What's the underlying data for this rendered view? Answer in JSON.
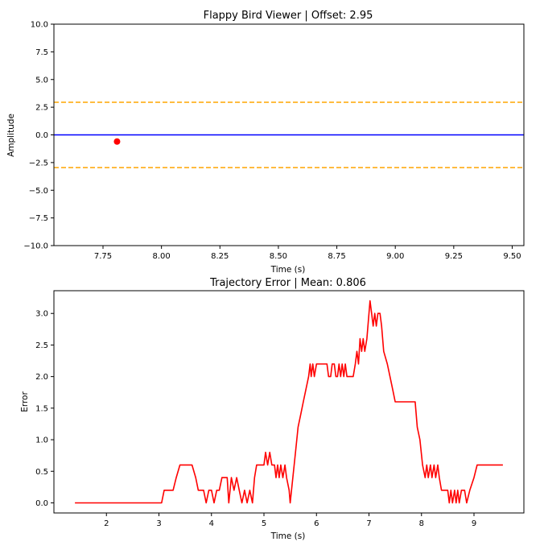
{
  "chart_data": [
    {
      "type": "scatter",
      "title": "Flappy Bird Viewer | Offset: 2.95",
      "xlabel": "Time (s)",
      "ylabel": "Amplitude",
      "xlim": [
        7.54,
        9.55
      ],
      "ylim": [
        -10,
        10
      ],
      "xticks": [
        7.75,
        8.0,
        8.25,
        8.5,
        8.75,
        9.0,
        9.25,
        9.5
      ],
      "xtick_labels": [
        "7.75",
        "8.00",
        "8.25",
        "8.50",
        "8.75",
        "9.00",
        "9.25",
        "9.50"
      ],
      "yticks": [
        10,
        7.5,
        5,
        2.5,
        0,
        -2.5,
        -5,
        -7.5,
        -10
      ],
      "ytick_labels": [
        "10.0",
        "7.5",
        "5.0",
        "2.5",
        "0.0",
        "−2.5",
        "−5.0",
        "−7.5",
        "−10.0"
      ],
      "grid": false,
      "hlines": [
        {
          "y": 2.95,
          "color": "#ffa500",
          "style": "dashed"
        },
        {
          "y": 0,
          "color": "#0000ff",
          "style": "solid"
        },
        {
          "y": -2.95,
          "color": "#ffa500",
          "style": "dashed"
        }
      ],
      "points": [
        {
          "x": 7.81,
          "y": -0.6,
          "color": "#ff0000"
        }
      ]
    },
    {
      "type": "line",
      "title": "Trajectory Error | Mean: 0.806",
      "xlabel": "Time (s)",
      "ylabel": "Error",
      "xlim": [
        1.0,
        9.95
      ],
      "ylim": [
        -0.16,
        3.36
      ],
      "xticks": [
        2,
        3,
        4,
        5,
        6,
        7,
        8,
        9
      ],
      "xtick_labels": [
        "2",
        "3",
        "4",
        "5",
        "6",
        "7",
        "8",
        "9"
      ],
      "yticks": [
        0,
        0.5,
        1.0,
        1.5,
        2.0,
        2.5,
        3.0
      ],
      "ytick_labels": [
        "0.0",
        "0.5",
        "1.0",
        "1.5",
        "2.0",
        "2.5",
        "3.0"
      ],
      "grid": false,
      "series": [
        {
          "color": "#ff0000",
          "points": [
            [
              1.4,
              0.0
            ],
            [
              3.05,
              0.0
            ],
            [
              3.1,
              0.2
            ],
            [
              3.27,
              0.2
            ],
            [
              3.33,
              0.4
            ],
            [
              3.4,
              0.6
            ],
            [
              3.63,
              0.6
            ],
            [
              3.7,
              0.4
            ],
            [
              3.75,
              0.2
            ],
            [
              3.85,
              0.2
            ],
            [
              3.9,
              0.0
            ],
            [
              3.95,
              0.2
            ],
            [
              4.0,
              0.2
            ],
            [
              4.05,
              0.0
            ],
            [
              4.1,
              0.2
            ],
            [
              4.15,
              0.2
            ],
            [
              4.2,
              0.4
            ],
            [
              4.3,
              0.4
            ],
            [
              4.33,
              0.0
            ],
            [
              4.38,
              0.4
            ],
            [
              4.43,
              0.2
            ],
            [
              4.48,
              0.4
            ],
            [
              4.53,
              0.2
            ],
            [
              4.58,
              0.0
            ],
            [
              4.63,
              0.2
            ],
            [
              4.68,
              0.0
            ],
            [
              4.73,
              0.2
            ],
            [
              4.78,
              0.0
            ],
            [
              4.82,
              0.4
            ],
            [
              4.86,
              0.6
            ],
            [
              5.0,
              0.6
            ],
            [
              5.03,
              0.8
            ],
            [
              5.07,
              0.6
            ],
            [
              5.11,
              0.8
            ],
            [
              5.15,
              0.6
            ],
            [
              5.2,
              0.6
            ],
            [
              5.23,
              0.4
            ],
            [
              5.26,
              0.6
            ],
            [
              5.29,
              0.4
            ],
            [
              5.32,
              0.6
            ],
            [
              5.36,
              0.4
            ],
            [
              5.4,
              0.6
            ],
            [
              5.43,
              0.4
            ],
            [
              5.48,
              0.2
            ],
            [
              5.5,
              0.0
            ],
            [
              5.55,
              0.4
            ],
            [
              5.6,
              0.8
            ],
            [
              5.65,
              1.2
            ],
            [
              5.7,
              1.4
            ],
            [
              5.75,
              1.6
            ],
            [
              5.8,
              1.8
            ],
            [
              5.85,
              2.0
            ],
            [
              5.88,
              2.2
            ],
            [
              5.9,
              2.0
            ],
            [
              5.93,
              2.2
            ],
            [
              5.96,
              2.0
            ],
            [
              6.0,
              2.2
            ],
            [
              6.2,
              2.2
            ],
            [
              6.23,
              2.0
            ],
            [
              6.27,
              2.0
            ],
            [
              6.3,
              2.2
            ],
            [
              6.34,
              2.2
            ],
            [
              6.37,
              2.0
            ],
            [
              6.4,
              2.0
            ],
            [
              6.43,
              2.2
            ],
            [
              6.46,
              2.0
            ],
            [
              6.49,
              2.2
            ],
            [
              6.52,
              2.0
            ],
            [
              6.55,
              2.2
            ],
            [
              6.58,
              2.0
            ],
            [
              6.7,
              2.0
            ],
            [
              6.74,
              2.2
            ],
            [
              6.77,
              2.4
            ],
            [
              6.8,
              2.2
            ],
            [
              6.83,
              2.6
            ],
            [
              6.86,
              2.4
            ],
            [
              6.89,
              2.6
            ],
            [
              6.92,
              2.4
            ],
            [
              6.96,
              2.6
            ],
            [
              6.98,
              2.8
            ],
            [
              7.02,
              3.2
            ],
            [
              7.05,
              3.0
            ],
            [
              7.08,
              2.8
            ],
            [
              7.11,
              3.0
            ],
            [
              7.14,
              2.8
            ],
            [
              7.17,
              3.0
            ],
            [
              7.21,
              3.0
            ],
            [
              7.24,
              2.8
            ],
            [
              7.28,
              2.4
            ],
            [
              7.35,
              2.2
            ],
            [
              7.4,
              2.0
            ],
            [
              7.45,
              1.8
            ],
            [
              7.5,
              1.6
            ],
            [
              7.88,
              1.6
            ],
            [
              7.92,
              1.2
            ],
            [
              7.97,
              1.0
            ],
            [
              8.02,
              0.6
            ],
            [
              8.07,
              0.4
            ],
            [
              8.1,
              0.6
            ],
            [
              8.13,
              0.4
            ],
            [
              8.17,
              0.6
            ],
            [
              8.2,
              0.4
            ],
            [
              8.24,
              0.6
            ],
            [
              8.27,
              0.4
            ],
            [
              8.31,
              0.6
            ],
            [
              8.34,
              0.4
            ],
            [
              8.38,
              0.2
            ],
            [
              8.42,
              0.2
            ],
            [
              8.5,
              0.2
            ],
            [
              8.53,
              0.0
            ],
            [
              8.56,
              0.2
            ],
            [
              8.59,
              0.0
            ],
            [
              8.63,
              0.2
            ],
            [
              8.66,
              0.0
            ],
            [
              8.69,
              0.2
            ],
            [
              8.72,
              0.0
            ],
            [
              8.76,
              0.2
            ],
            [
              8.82,
              0.2
            ],
            [
              8.86,
              0.0
            ],
            [
              8.92,
              0.2
            ],
            [
              9.0,
              0.4
            ],
            [
              9.06,
              0.6
            ],
            [
              9.55,
              0.6
            ]
          ]
        }
      ]
    }
  ]
}
